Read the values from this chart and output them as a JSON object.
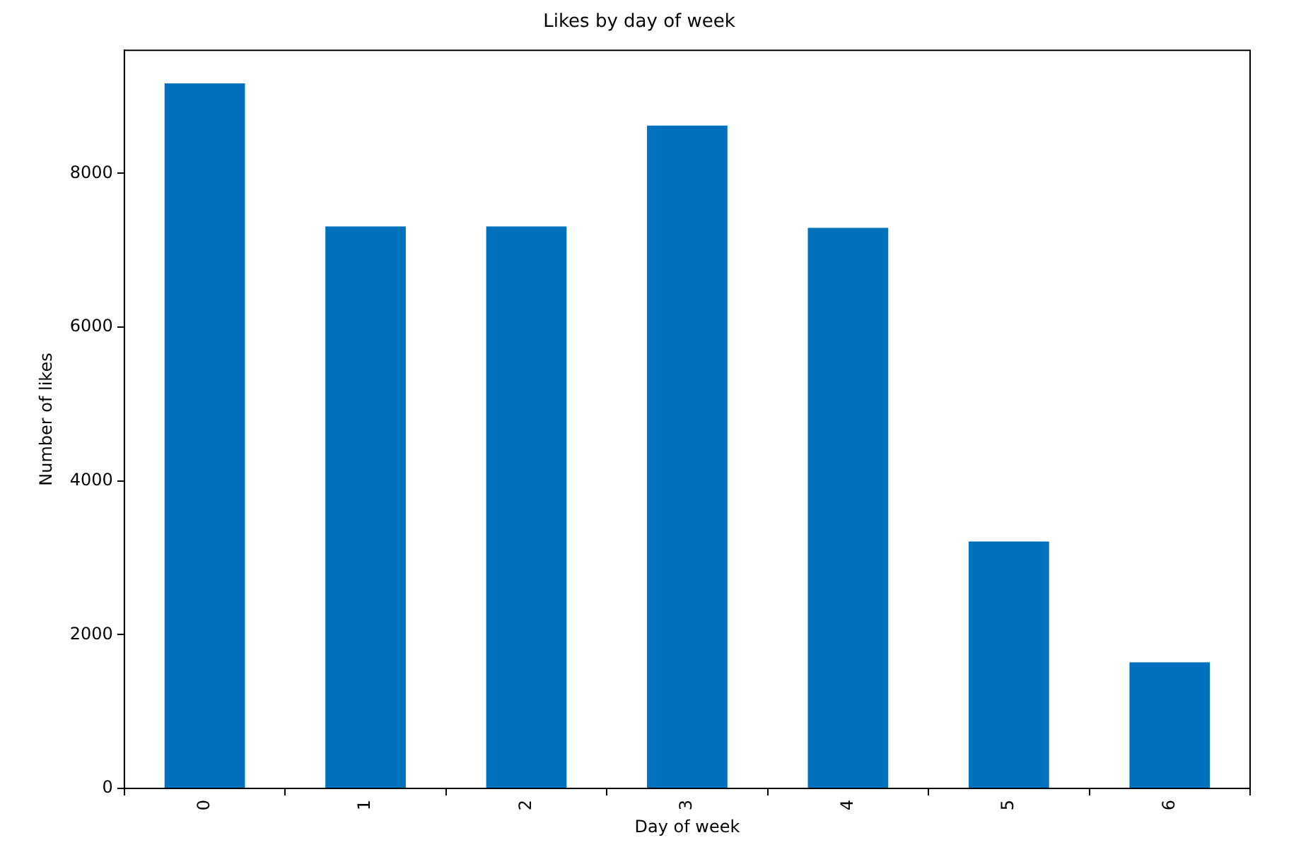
{
  "chart_data": {
    "type": "bar",
    "title": "Likes by day of week",
    "xlabel": "Day of week",
    "ylabel": "Number of likes",
    "categories": [
      "0",
      "1",
      "2",
      "3",
      "4",
      "5",
      "6"
    ],
    "values": [
      9170,
      7310,
      7310,
      8620,
      7290,
      3210,
      1640
    ],
    "color": "#0072bd",
    "ylim": [
      0,
      9600
    ],
    "yticks": [
      0,
      2000,
      4000,
      6000,
      8000
    ],
    "grid": false,
    "legend": false
  }
}
